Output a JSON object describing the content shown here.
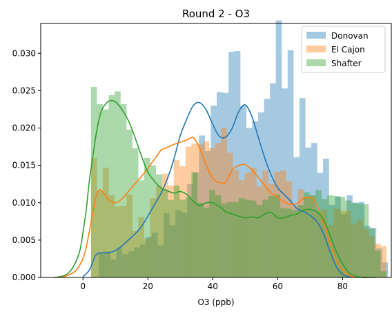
{
  "chart_data": {
    "type": "histogram+kde",
    "title": "Round 2 - O3",
    "xlabel": "O3 (ppb)",
    "ylabel": "",
    "xlim": [
      -13,
      95
    ],
    "ylim": [
      0,
      0.034
    ],
    "xticks": [
      0,
      20,
      40,
      60,
      80
    ],
    "yticks": [
      0.0,
      0.005,
      0.01,
      0.015,
      0.02,
      0.025,
      0.03
    ],
    "ytick_labels": [
      "0.000",
      "0.005",
      "0.010",
      "0.015",
      "0.020",
      "0.025",
      "0.030"
    ],
    "legend_position": "top-right",
    "bin_width": 1.82,
    "series": [
      {
        "name": "Donovan",
        "color": "#1f77b4",
        "bin_start": 3.0,
        "density": [
          0.0001,
          0.0032,
          0.0035,
          0.0024,
          0.004,
          0.0031,
          0.0035,
          0.004,
          0.0044,
          0.0054,
          0.006,
          0.0043,
          0.0086,
          0.007,
          0.009,
          0.0087,
          0.0125,
          0.014,
          0.019,
          0.0169,
          0.023,
          0.0248,
          0.0247,
          0.0302,
          0.0303,
          0.023,
          0.02,
          0.0209,
          0.0221,
          0.0239,
          0.026,
          0.0344,
          0.0253,
          0.0304,
          0.0161,
          0.024,
          0.0174,
          0.018,
          0.014,
          0.0159,
          0.0097,
          0.0108,
          0.0085,
          0.011,
          0.01,
          0.0101,
          0.0069,
          0.0066,
          0.0039,
          0.002
        ],
        "kde_x": [
          0,
          2,
          4,
          6,
          8,
          10,
          12,
          14,
          16,
          18,
          20,
          22,
          24,
          26,
          28,
          30,
          32,
          34,
          36,
          38,
          40,
          42,
          44,
          46,
          48,
          50,
          52,
          54,
          56,
          58,
          60,
          62,
          64,
          66,
          68,
          70,
          72,
          74,
          76,
          78,
          80,
          82,
          84
        ],
        "kde_y": [
          0.0001,
          0.001,
          0.003,
          0.0033,
          0.0033,
          0.0036,
          0.0042,
          0.005,
          0.0058,
          0.0068,
          0.0082,
          0.0097,
          0.0112,
          0.0132,
          0.0158,
          0.019,
          0.0212,
          0.023,
          0.0234,
          0.0224,
          0.0205,
          0.0189,
          0.0188,
          0.02,
          0.0222,
          0.0231,
          0.0216,
          0.0188,
          0.016,
          0.0137,
          0.012,
          0.0111,
          0.0102,
          0.0092,
          0.0088,
          0.0083,
          0.0075,
          0.006,
          0.0036,
          0.0015,
          0.0004,
          0.0001,
          0.0
        ]
      },
      {
        "name": "El Cajon",
        "color": "#ff7f0e",
        "bin_start": 2.5,
        "density": [
          0.016,
          0.0116,
          0.0147,
          0.011,
          0.0095,
          0.0096,
          0.0111,
          0.0062,
          0.0081,
          0.0052,
          0.0106,
          0.0123,
          0.0139,
          0.0123,
          0.0157,
          0.0149,
          0.0175,
          0.0179,
          0.0178,
          0.0182,
          0.0173,
          0.018,
          0.02,
          0.0167,
          0.0144,
          0.013,
          0.014,
          0.0147,
          0.0122,
          0.0143,
          0.0125,
          0.0141,
          0.0143,
          0.0129,
          0.0096,
          0.0118,
          0.0108,
          0.0109,
          0.0088,
          0.0091,
          0.007,
          0.0092,
          0.0089,
          0.0089,
          0.0072,
          0.0077,
          0.0065,
          0.0055,
          0.0045,
          0.0042
        ],
        "kde_x": [
          -8,
          -6,
          -4,
          -2,
          0,
          1,
          2,
          3,
          4,
          5,
          6,
          8,
          10,
          12,
          14,
          16,
          18,
          20,
          22,
          24,
          26,
          28,
          30,
          32,
          34,
          36,
          38,
          40,
          42,
          44,
          46,
          48,
          50,
          52,
          54,
          56,
          58,
          60,
          62,
          64,
          66,
          68,
          70,
          72,
          74,
          76,
          78,
          80,
          82,
          84
        ],
        "kde_y": [
          0.0,
          0.0001,
          0.0004,
          0.001,
          0.0025,
          0.004,
          0.0062,
          0.0086,
          0.0108,
          0.0117,
          0.0115,
          0.0104,
          0.01,
          0.0105,
          0.0115,
          0.0125,
          0.0135,
          0.0146,
          0.0158,
          0.017,
          0.0174,
          0.0178,
          0.0181,
          0.0184,
          0.0187,
          0.0173,
          0.015,
          0.0133,
          0.0127,
          0.0128,
          0.0144,
          0.015,
          0.0151,
          0.0144,
          0.0134,
          0.0123,
          0.0113,
          0.0107,
          0.0101,
          0.0098,
          0.0099,
          0.0106,
          0.0107,
          0.0097,
          0.0074,
          0.0048,
          0.0024,
          0.001,
          0.0003,
          0.0
        ]
      },
      {
        "name": "Shafter",
        "color": "#2ca02c",
        "bin_start": 2.5,
        "density": [
          0.0255,
          0.0232,
          0.0225,
          0.0244,
          0.0249,
          0.0232,
          0.0198,
          0.0173,
          0.013,
          0.016,
          0.015,
          0.0138,
          0.0118,
          0.0104,
          0.0123,
          0.0104,
          0.0107,
          0.0141,
          0.01,
          0.0093,
          0.0117,
          0.011,
          0.0099,
          0.0101,
          0.0101,
          0.0106,
          0.0104,
          0.0103,
          0.0097,
          0.0104,
          0.0109,
          0.0111,
          0.0093,
          0.0092,
          0.009,
          0.0097,
          0.0114,
          0.011,
          0.0117,
          0.0105,
          0.011,
          0.0109,
          0.0108,
          0.0103,
          0.01,
          0.0099,
          0.0098,
          0.0066,
          0.0036,
          0.0008
        ],
        "kde_x": [
          -9,
          -7,
          -5,
          -3,
          -1,
          0,
          1,
          2,
          3,
          4,
          5,
          6,
          8,
          10,
          12,
          14,
          16,
          18,
          20,
          22,
          24,
          26,
          28,
          30,
          32,
          34,
          36,
          38,
          40,
          42,
          44,
          46,
          48,
          50,
          52,
          54,
          56,
          58,
          60,
          62,
          64,
          66,
          68,
          70,
          72,
          74,
          76,
          78,
          80,
          82,
          84,
          86,
          88,
          90
        ],
        "kde_y": [
          0.0,
          0.0001,
          0.0004,
          0.0014,
          0.0035,
          0.006,
          0.009,
          0.013,
          0.016,
          0.019,
          0.0212,
          0.0226,
          0.0236,
          0.0235,
          0.0225,
          0.021,
          0.0188,
          0.0163,
          0.0141,
          0.0129,
          0.012,
          0.0116,
          0.0113,
          0.0115,
          0.0111,
          0.0102,
          0.0096,
          0.01,
          0.01,
          0.0095,
          0.0088,
          0.0085,
          0.0082,
          0.008,
          0.0081,
          0.008,
          0.0085,
          0.0087,
          0.008,
          0.008,
          0.0083,
          0.0085,
          0.009,
          0.0091,
          0.0088,
          0.0078,
          0.0058,
          0.0035,
          0.0018,
          0.0006,
          0.0002,
          0.0,
          0.0,
          0.0
        ]
      }
    ]
  }
}
